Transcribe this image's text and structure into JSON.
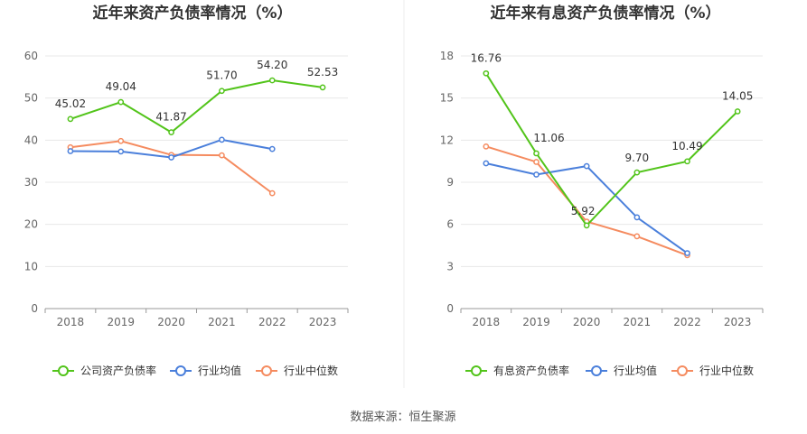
{
  "source": "数据来源：恒生聚源",
  "chart_data": [
    {
      "type": "line",
      "title": "近年来资产负债率情况（%）",
      "categories": [
        "2018",
        "2019",
        "2020",
        "2021",
        "2022",
        "2023"
      ],
      "ylim": [
        0,
        60
      ],
      "yticks": [
        0,
        10,
        20,
        30,
        40,
        50,
        60
      ],
      "grid": true,
      "legend_position": "bottom",
      "series": [
        {
          "name": "公司资产负债率",
          "color": "#52c41a",
          "values": [
            45.02,
            49.04,
            41.87,
            51.7,
            54.2,
            52.53
          ],
          "labels": [
            "45.02",
            "49.04",
            "41.87",
            "51.70",
            "54.20",
            "52.53"
          ]
        },
        {
          "name": "行业均值",
          "color": "#4a7fdb",
          "values": [
            37.4,
            37.3,
            35.9,
            40.1,
            37.9,
            null
          ]
        },
        {
          "name": "行业中位数",
          "color": "#f58b5f",
          "values": [
            38.3,
            39.8,
            36.5,
            36.4,
            27.4,
            null
          ]
        }
      ]
    },
    {
      "type": "line",
      "title": "近年来有息资产负债率情况（%）",
      "categories": [
        "2018",
        "2019",
        "2020",
        "2021",
        "2022",
        "2023"
      ],
      "ylim": [
        0,
        18
      ],
      "yticks": [
        0,
        3,
        6,
        9,
        12,
        15,
        18
      ],
      "grid": true,
      "legend_position": "bottom",
      "series": [
        {
          "name": "有息资产负债率",
          "color": "#52c41a",
          "values": [
            16.76,
            11.06,
            5.92,
            9.7,
            10.49,
            14.05
          ],
          "labels": [
            "16.76",
            "11.06",
            "5.92",
            "9.70",
            "10.49",
            "14.05"
          ]
        },
        {
          "name": "行业均值",
          "color": "#4a7fdb",
          "values": [
            10.35,
            9.55,
            10.15,
            6.5,
            3.95,
            null
          ]
        },
        {
          "name": "行业中位数",
          "color": "#f58b5f",
          "values": [
            11.55,
            10.45,
            6.2,
            5.15,
            3.8,
            null
          ]
        }
      ]
    }
  ]
}
